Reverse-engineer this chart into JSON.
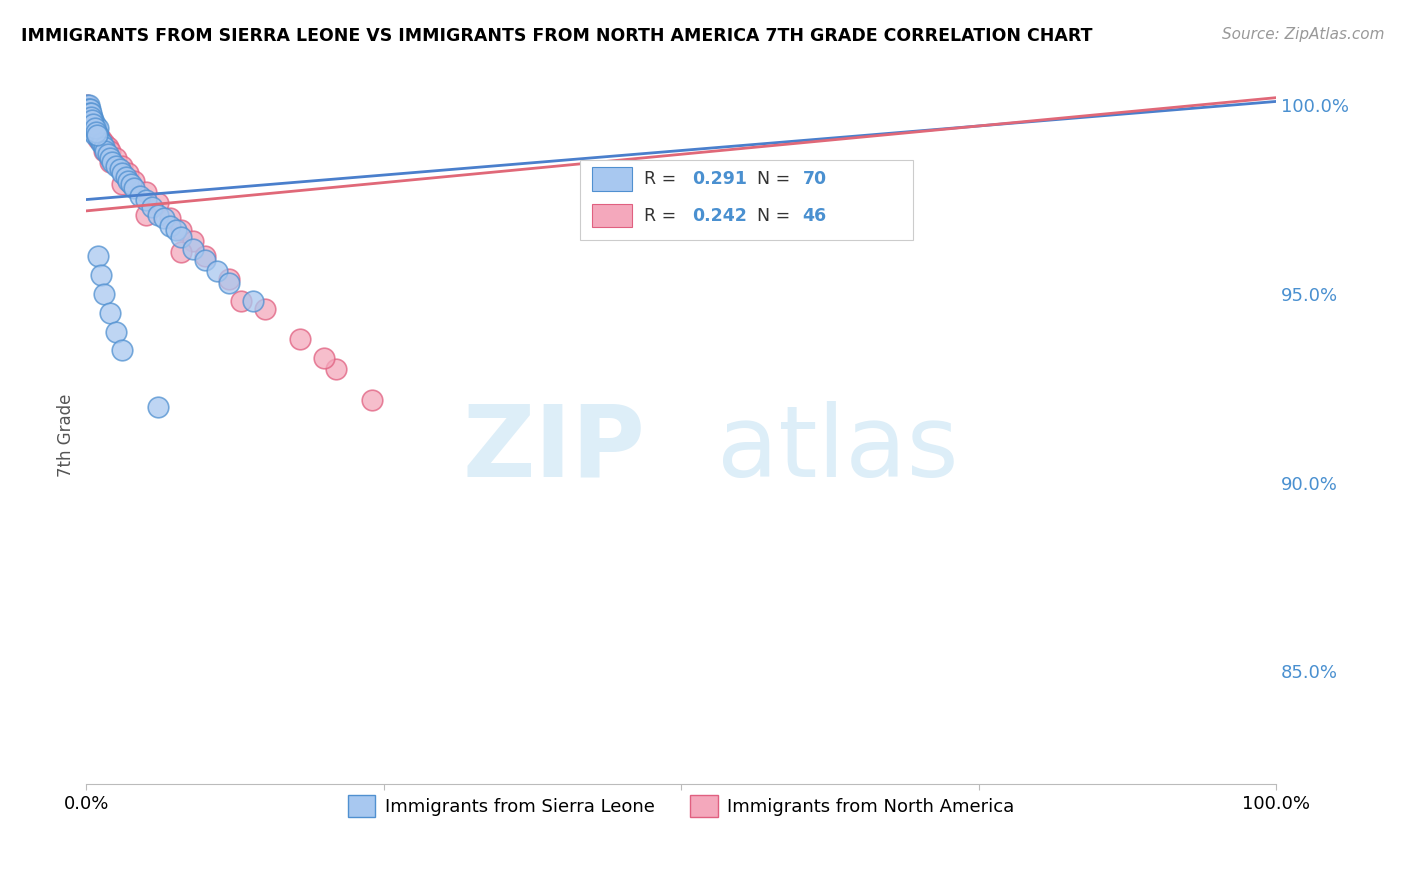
{
  "title": "IMMIGRANTS FROM SIERRA LEONE VS IMMIGRANTS FROM NORTH AMERICA 7TH GRADE CORRELATION CHART",
  "source": "Source: ZipAtlas.com",
  "ylabel": "7th Grade",
  "xlim": [
    0.0,
    1.0
  ],
  "ylim": [
    0.82,
    1.005
  ],
  "yticks": [
    0.85,
    0.9,
    0.95,
    1.0
  ],
  "ytick_labels": [
    "85.0%",
    "90.0%",
    "95.0%",
    "100.0%"
  ],
  "xticks": [
    0.0,
    0.25,
    0.5,
    0.75,
    1.0
  ],
  "xtick_labels": [
    "0.0%",
    "",
    "",
    "",
    "100.0%"
  ],
  "legend_blue_label": "Immigrants from Sierra Leone",
  "legend_pink_label": "Immigrants from North America",
  "R_blue": 0.291,
  "N_blue": 70,
  "R_pink": 0.242,
  "N_pink": 46,
  "blue_color": "#a8c8f0",
  "pink_color": "#f4a8bc",
  "blue_edge_color": "#5090d0",
  "pink_edge_color": "#e06080",
  "blue_line_color": "#4a7fcc",
  "pink_line_color": "#e06878",
  "watermark_zip": "ZIP",
  "watermark_atlas": "atlas",
  "blue_x": [
    0.001,
    0.001,
    0.001,
    0.002,
    0.002,
    0.002,
    0.002,
    0.003,
    0.003,
    0.003,
    0.004,
    0.004,
    0.005,
    0.005,
    0.006,
    0.006,
    0.007,
    0.007,
    0.008,
    0.009,
    0.01,
    0.01,
    0.011,
    0.012,
    0.013,
    0.015,
    0.016,
    0.018,
    0.02,
    0.022,
    0.025,
    0.028,
    0.03,
    0.033,
    0.035,
    0.038,
    0.04,
    0.045,
    0.05,
    0.055,
    0.06,
    0.065,
    0.07,
    0.075,
    0.08,
    0.09,
    0.1,
    0.11,
    0.12,
    0.14,
    0.001,
    0.001,
    0.002,
    0.002,
    0.003,
    0.003,
    0.004,
    0.004,
    0.005,
    0.006,
    0.007,
    0.008,
    0.009,
    0.01,
    0.012,
    0.015,
    0.02,
    0.025,
    0.03,
    0.06
  ],
  "blue_y": [
    0.999,
    0.998,
    0.997,
    0.999,
    0.998,
    0.997,
    0.996,
    0.998,
    0.997,
    0.996,
    0.997,
    0.995,
    0.997,
    0.994,
    0.996,
    0.993,
    0.995,
    0.992,
    0.994,
    0.993,
    0.994,
    0.992,
    0.991,
    0.99,
    0.99,
    0.989,
    0.988,
    0.987,
    0.986,
    0.985,
    0.984,
    0.983,
    0.982,
    0.981,
    0.98,
    0.979,
    0.978,
    0.976,
    0.975,
    0.973,
    0.971,
    0.97,
    0.968,
    0.967,
    0.965,
    0.962,
    0.959,
    0.956,
    0.953,
    0.948,
    1.0,
    0.999,
    1.0,
    0.999,
    0.999,
    0.998,
    0.998,
    0.997,
    0.996,
    0.995,
    0.994,
    0.993,
    0.992,
    0.96,
    0.955,
    0.95,
    0.945,
    0.94,
    0.935,
    0.92
  ],
  "pink_x": [
    0.001,
    0.001,
    0.002,
    0.002,
    0.003,
    0.003,
    0.004,
    0.005,
    0.006,
    0.007,
    0.008,
    0.01,
    0.012,
    0.015,
    0.018,
    0.02,
    0.025,
    0.03,
    0.035,
    0.04,
    0.05,
    0.06,
    0.07,
    0.08,
    0.09,
    0.1,
    0.12,
    0.15,
    0.18,
    0.21,
    0.24,
    0.001,
    0.002,
    0.003,
    0.004,
    0.005,
    0.006,
    0.008,
    0.01,
    0.015,
    0.02,
    0.03,
    0.05,
    0.08,
    0.13,
    0.2
  ],
  "pink_y": [
    0.999,
    0.998,
    0.999,
    0.997,
    0.998,
    0.996,
    0.997,
    0.996,
    0.995,
    0.994,
    0.993,
    0.992,
    0.991,
    0.99,
    0.989,
    0.988,
    0.986,
    0.984,
    0.982,
    0.98,
    0.977,
    0.974,
    0.97,
    0.967,
    0.964,
    0.96,
    0.954,
    0.946,
    0.938,
    0.93,
    0.922,
    1.0,
    0.999,
    0.998,
    0.997,
    0.996,
    0.995,
    0.993,
    0.991,
    0.988,
    0.985,
    0.979,
    0.971,
    0.961,
    0.948,
    0.933
  ],
  "line_blue_x0": 0.0,
  "line_blue_x1": 1.0,
  "line_blue_y0": 0.975,
  "line_blue_y1": 1.001,
  "line_pink_x0": 0.0,
  "line_pink_x1": 1.0,
  "line_pink_y0": 0.972,
  "line_pink_y1": 1.002
}
